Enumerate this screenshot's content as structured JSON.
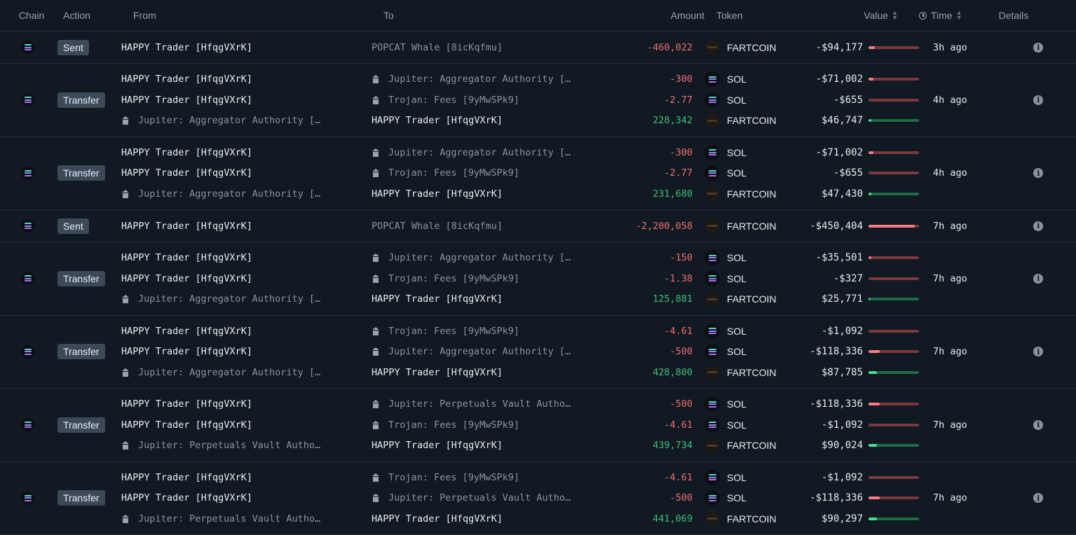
{
  "header": {
    "chain": "Chain",
    "action": "Action",
    "from": "From",
    "to": "To",
    "amount": "Amount",
    "token": "Token",
    "value": "Value",
    "time": "Time",
    "details": "Details"
  },
  "colors": {
    "background": "#111922",
    "negative": "#f06f6f",
    "positive": "#3fc07a",
    "badge": "#3c4a58"
  },
  "rows": [
    {
      "action": "Sent",
      "time": "3h ago",
      "lines": [
        {
          "from": "HAPPY Trader [HfqgVXrK]",
          "from_entity": false,
          "to": "POPCAT Whale [8icKqfmu]",
          "to_entity": false,
          "to_dim": true,
          "amount": "-460,022",
          "sign": "neg",
          "token": "FARTCOIN",
          "token_icon": "fartcoin-icon",
          "value": "-$94,177",
          "bar": 0.12
        }
      ]
    },
    {
      "action": "Transfer",
      "time": "4h ago",
      "lines": [
        {
          "from": "HAPPY Trader [HfqgVXrK]",
          "from_entity": false,
          "to": "Jupiter: Aggregator Authority […",
          "to_entity": true,
          "amount": "-300",
          "sign": "neg",
          "token": "SOL",
          "token_icon": "sol-icon",
          "value": "-$71,002",
          "bar": 0.1
        },
        {
          "from": "HAPPY Trader [HfqgVXrK]",
          "from_entity": false,
          "to": "Trojan: Fees [9yMwSPk9]",
          "to_entity": true,
          "amount": "-2.77",
          "sign": "neg",
          "token": "SOL",
          "token_icon": "sol-icon",
          "value": "-$655",
          "bar": 0.0
        },
        {
          "from": "Jupiter: Aggregator Authority […",
          "from_entity": true,
          "to": "HAPPY Trader [HfqgVXrK]",
          "to_entity": false,
          "amount": "228,342",
          "sign": "pos",
          "token": "FARTCOIN",
          "token_icon": "fartcoin-icon",
          "value": "$46,747",
          "bar": 0.05
        }
      ]
    },
    {
      "action": "Transfer",
      "time": "4h ago",
      "lines": [
        {
          "from": "HAPPY Trader [HfqgVXrK]",
          "from_entity": false,
          "to": "Jupiter: Aggregator Authority […",
          "to_entity": true,
          "amount": "-300",
          "sign": "neg",
          "token": "SOL",
          "token_icon": "sol-icon",
          "value": "-$71,002",
          "bar": 0.1
        },
        {
          "from": "HAPPY Trader [HfqgVXrK]",
          "from_entity": false,
          "to": "Trojan: Fees [9yMwSPk9]",
          "to_entity": true,
          "amount": "-2.77",
          "sign": "neg",
          "token": "SOL",
          "token_icon": "sol-icon",
          "value": "-$655",
          "bar": 0.0
        },
        {
          "from": "Jupiter: Aggregator Authority […",
          "from_entity": true,
          "to": "HAPPY Trader [HfqgVXrK]",
          "to_entity": false,
          "amount": "231,680",
          "sign": "pos",
          "token": "FARTCOIN",
          "token_icon": "fartcoin-icon",
          "value": "$47,430",
          "bar": 0.05
        }
      ]
    },
    {
      "action": "Sent",
      "time": "7h ago",
      "lines": [
        {
          "from": "HAPPY Trader [HfqgVXrK]",
          "from_entity": false,
          "to": "POPCAT Whale [8icKqfmu]",
          "to_entity": false,
          "to_dim": true,
          "amount": "-2,200,058",
          "sign": "neg",
          "token": "FARTCOIN",
          "token_icon": "fartcoin-icon",
          "value": "-$450,404",
          "bar": 0.92
        }
      ]
    },
    {
      "action": "Transfer",
      "time": "7h ago",
      "lines": [
        {
          "from": "HAPPY Trader [HfqgVXrK]",
          "from_entity": false,
          "to": "Jupiter: Aggregator Authority […",
          "to_entity": true,
          "amount": "-150",
          "sign": "neg",
          "token": "SOL",
          "token_icon": "sol-icon",
          "value": "-$35,501",
          "bar": 0.05
        },
        {
          "from": "HAPPY Trader [HfqgVXrK]",
          "from_entity": false,
          "to": "Trojan: Fees [9yMwSPk9]",
          "to_entity": true,
          "amount": "-1.38",
          "sign": "neg",
          "token": "SOL",
          "token_icon": "sol-icon",
          "value": "-$327",
          "bar": 0.0
        },
        {
          "from": "Jupiter: Aggregator Authority […",
          "from_entity": true,
          "to": "HAPPY Trader [HfqgVXrK]",
          "to_entity": false,
          "amount": "125,881",
          "sign": "pos",
          "token": "FARTCOIN",
          "token_icon": "fartcoin-icon",
          "value": "$25,771",
          "bar": 0.03
        }
      ]
    },
    {
      "action": "Transfer",
      "time": "7h ago",
      "lines": [
        {
          "from": "HAPPY Trader [HfqgVXrK]",
          "from_entity": false,
          "to": "Trojan: Fees [9yMwSPk9]",
          "to_entity": true,
          "amount": "-4.61",
          "sign": "neg",
          "token": "SOL",
          "token_icon": "sol-icon",
          "value": "-$1,092",
          "bar": 0.0
        },
        {
          "from": "HAPPY Trader [HfqgVXrK]",
          "from_entity": false,
          "to": "Jupiter: Aggregator Authority […",
          "to_entity": true,
          "amount": "-500",
          "sign": "neg",
          "token": "SOL",
          "token_icon": "sol-icon",
          "value": "-$118,336",
          "bar": 0.22
        },
        {
          "from": "Jupiter: Aggregator Authority […",
          "from_entity": true,
          "to": "HAPPY Trader [HfqgVXrK]",
          "to_entity": false,
          "amount": "428,800",
          "sign": "pos",
          "token": "FARTCOIN",
          "token_icon": "fartcoin-icon",
          "value": "$87,785",
          "bar": 0.17
        }
      ]
    },
    {
      "action": "Transfer",
      "time": "7h ago",
      "lines": [
        {
          "from": "HAPPY Trader [HfqgVXrK]",
          "from_entity": false,
          "to": "Jupiter: Perpetuals Vault Autho…",
          "to_entity": true,
          "amount": "-500",
          "sign": "neg",
          "token": "SOL",
          "token_icon": "sol-icon",
          "value": "-$118,336",
          "bar": 0.22
        },
        {
          "from": "HAPPY Trader [HfqgVXrK]",
          "from_entity": false,
          "to": "Trojan: Fees [9yMwSPk9]",
          "to_entity": true,
          "amount": "-4.61",
          "sign": "neg",
          "token": "SOL",
          "token_icon": "sol-icon",
          "value": "-$1,092",
          "bar": 0.0
        },
        {
          "from": "Jupiter: Perpetuals Vault Autho…",
          "from_entity": true,
          "to": "HAPPY Trader [HfqgVXrK]",
          "to_entity": false,
          "amount": "439,734",
          "sign": "pos",
          "token": "FARTCOIN",
          "token_icon": "fartcoin-icon",
          "value": "$90,024",
          "bar": 0.17
        }
      ]
    },
    {
      "action": "Transfer",
      "time": "7h ago",
      "lines": [
        {
          "from": "HAPPY Trader [HfqgVXrK]",
          "from_entity": false,
          "to": "Trojan: Fees [9yMwSPk9]",
          "to_entity": true,
          "amount": "-4.61",
          "sign": "neg",
          "token": "SOL",
          "token_icon": "sol-icon",
          "value": "-$1,092",
          "bar": 0.0
        },
        {
          "from": "HAPPY Trader [HfqgVXrK]",
          "from_entity": false,
          "to": "Jupiter: Perpetuals Vault Autho…",
          "to_entity": true,
          "amount": "-500",
          "sign": "neg",
          "token": "SOL",
          "token_icon": "sol-icon",
          "value": "-$118,336",
          "bar": 0.22
        },
        {
          "from": "Jupiter: Perpetuals Vault Autho…",
          "from_entity": true,
          "to": "HAPPY Trader [HfqgVXrK]",
          "to_entity": false,
          "amount": "441,069",
          "sign": "pos",
          "token": "FARTCOIN",
          "token_icon": "fartcoin-icon",
          "value": "$90,297",
          "bar": 0.17
        }
      ]
    }
  ]
}
